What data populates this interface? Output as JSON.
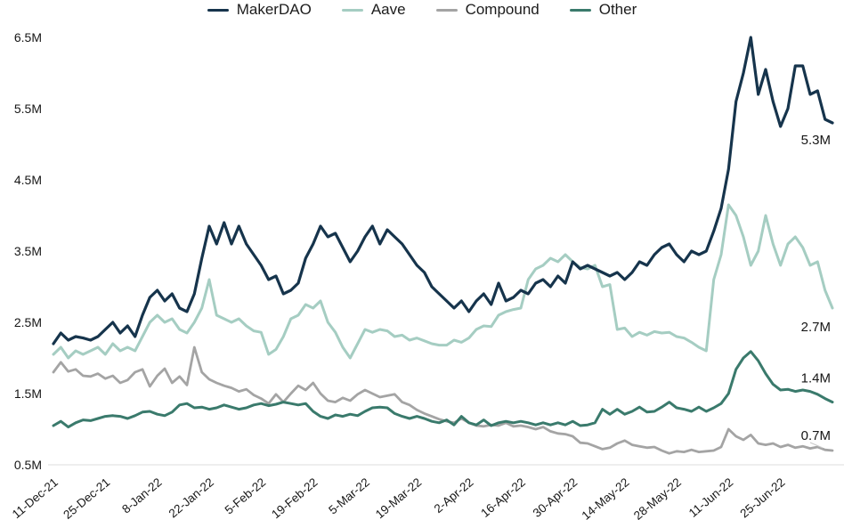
{
  "chart_data": {
    "type": "line",
    "title": "",
    "xlabel": "",
    "ylabel": "",
    "unit": "M",
    "grid": false,
    "legend_position": "top",
    "ylim": [
      0.5,
      6.5
    ],
    "y_tick_labels": [
      "6.5M",
      "5.5M",
      "4.5M",
      "3.5M",
      "2.5M",
      "1.5M",
      "0.5M"
    ],
    "y_tick_values": [
      6.5,
      5.5,
      4.5,
      3.5,
      2.5,
      1.5,
      0.5
    ],
    "x_tick_labels": [
      "11-Dec-21",
      "25-Dec-21",
      "8-Jan-22",
      "22-Jan-22",
      "5-Feb-22",
      "19-Feb-22",
      "5-Mar-22",
      "19-Mar-22",
      "2-Apr-22",
      "16-Apr-22",
      "30-Apr-22",
      "14-May-22",
      "28-May-22",
      "11-Jun-22",
      "25-Jun-22"
    ],
    "x_tick_step": 7,
    "series": [
      {
        "name": "MakerDAO",
        "color": "#16344c",
        "end_label": "5.3M",
        "values": [
          2.2,
          2.35,
          2.25,
          2.3,
          2.28,
          2.25,
          2.3,
          2.4,
          2.5,
          2.35,
          2.45,
          2.3,
          2.6,
          2.85,
          2.95,
          2.8,
          2.9,
          2.7,
          2.65,
          2.9,
          3.4,
          3.85,
          3.6,
          3.9,
          3.6,
          3.85,
          3.6,
          3.45,
          3.3,
          3.1,
          3.15,
          2.9,
          2.95,
          3.05,
          3.4,
          3.6,
          3.85,
          3.7,
          3.75,
          3.55,
          3.35,
          3.5,
          3.7,
          3.85,
          3.6,
          3.8,
          3.7,
          3.6,
          3.45,
          3.3,
          3.2,
          3.0,
          2.9,
          2.8,
          2.7,
          2.8,
          2.65,
          2.8,
          2.9,
          2.75,
          3.05,
          2.8,
          2.85,
          2.95,
          2.9,
          3.05,
          3.1,
          3.0,
          3.15,
          3.05,
          3.35,
          3.25,
          3.3,
          3.25,
          3.2,
          3.15,
          3.2,
          3.1,
          3.2,
          3.35,
          3.3,
          3.45,
          3.55,
          3.6,
          3.45,
          3.35,
          3.5,
          3.45,
          3.5,
          3.78,
          4.1,
          4.65,
          5.6,
          6.0,
          6.5,
          5.7,
          6.05,
          5.6,
          5.25,
          5.5,
          6.1,
          6.1,
          5.7,
          5.75,
          5.35,
          5.3
        ]
      },
      {
        "name": "Aave",
        "color": "#a5cdc2",
        "end_label": "2.7M",
        "values": [
          2.05,
          2.15,
          2.0,
          2.1,
          2.05,
          2.1,
          2.15,
          2.05,
          2.2,
          2.1,
          2.15,
          2.1,
          2.3,
          2.5,
          2.6,
          2.5,
          2.55,
          2.4,
          2.35,
          2.5,
          2.7,
          3.1,
          2.6,
          2.55,
          2.5,
          2.55,
          2.45,
          2.38,
          2.36,
          2.05,
          2.12,
          2.3,
          2.55,
          2.6,
          2.75,
          2.7,
          2.8,
          2.5,
          2.36,
          2.15,
          2.0,
          2.2,
          2.4,
          2.36,
          2.4,
          2.38,
          2.3,
          2.32,
          2.25,
          2.28,
          2.24,
          2.2,
          2.18,
          2.18,
          2.25,
          2.22,
          2.28,
          2.4,
          2.45,
          2.44,
          2.6,
          2.65,
          2.68,
          2.7,
          3.1,
          3.25,
          3.3,
          3.4,
          3.35,
          3.45,
          3.35,
          3.27,
          3.25,
          3.3,
          3.0,
          3.03,
          2.4,
          2.42,
          2.3,
          2.36,
          2.32,
          2.37,
          2.35,
          2.36,
          2.3,
          2.28,
          2.22,
          2.15,
          2.1,
          3.1,
          3.45,
          4.15,
          4.0,
          3.7,
          3.3,
          3.5,
          4.0,
          3.6,
          3.3,
          3.6,
          3.7,
          3.55,
          3.3,
          3.35,
          2.95,
          2.7
        ]
      },
      {
        "name": "Compound",
        "color": "#a4a4a4",
        "end_label": "0.7M",
        "values": [
          1.8,
          1.94,
          1.81,
          1.84,
          1.75,
          1.74,
          1.78,
          1.71,
          1.75,
          1.65,
          1.69,
          1.8,
          1.84,
          1.6,
          1.75,
          1.85,
          1.65,
          1.74,
          1.62,
          2.15,
          1.8,
          1.7,
          1.65,
          1.61,
          1.58,
          1.53,
          1.56,
          1.48,
          1.43,
          1.36,
          1.49,
          1.38,
          1.5,
          1.61,
          1.55,
          1.65,
          1.5,
          1.4,
          1.38,
          1.44,
          1.4,
          1.49,
          1.55,
          1.5,
          1.45,
          1.47,
          1.49,
          1.38,
          1.34,
          1.27,
          1.22,
          1.18,
          1.14,
          1.11,
          1.09,
          1.15,
          1.09,
          1.05,
          1.04,
          1.06,
          1.05,
          1.09,
          1.04,
          1.05,
          1.03,
          1.0,
          1.03,
          0.97,
          0.94,
          0.93,
          0.9,
          0.81,
          0.8,
          0.76,
          0.72,
          0.74,
          0.8,
          0.84,
          0.78,
          0.76,
          0.74,
          0.75,
          0.7,
          0.66,
          0.69,
          0.68,
          0.71,
          0.68,
          0.69,
          0.7,
          0.75,
          1.0,
          0.9,
          0.85,
          0.92,
          0.8,
          0.78,
          0.8,
          0.75,
          0.78,
          0.74,
          0.76,
          0.73,
          0.75,
          0.71,
          0.7
        ]
      },
      {
        "name": "Other",
        "color": "#3a7a6c",
        "end_label": "1.4M",
        "values": [
          1.05,
          1.11,
          1.03,
          1.09,
          1.13,
          1.12,
          1.15,
          1.18,
          1.19,
          1.18,
          1.15,
          1.19,
          1.24,
          1.25,
          1.21,
          1.19,
          1.24,
          1.34,
          1.36,
          1.3,
          1.31,
          1.28,
          1.3,
          1.34,
          1.31,
          1.28,
          1.3,
          1.34,
          1.36,
          1.33,
          1.35,
          1.38,
          1.36,
          1.34,
          1.36,
          1.25,
          1.18,
          1.15,
          1.2,
          1.18,
          1.21,
          1.19,
          1.25,
          1.3,
          1.31,
          1.3,
          1.22,
          1.18,
          1.15,
          1.18,
          1.15,
          1.11,
          1.09,
          1.13,
          1.06,
          1.18,
          1.09,
          1.06,
          1.13,
          1.05,
          1.09,
          1.11,
          1.09,
          1.11,
          1.09,
          1.06,
          1.09,
          1.06,
          1.09,
          1.06,
          1.11,
          1.05,
          1.06,
          1.09,
          1.28,
          1.21,
          1.28,
          1.21,
          1.25,
          1.31,
          1.24,
          1.25,
          1.31,
          1.38,
          1.3,
          1.28,
          1.25,
          1.31,
          1.25,
          1.3,
          1.36,
          1.5,
          1.84,
          2.0,
          2.09,
          1.96,
          1.78,
          1.63,
          1.55,
          1.56,
          1.53,
          1.55,
          1.53,
          1.49,
          1.43,
          1.38
        ]
      }
    ]
  }
}
